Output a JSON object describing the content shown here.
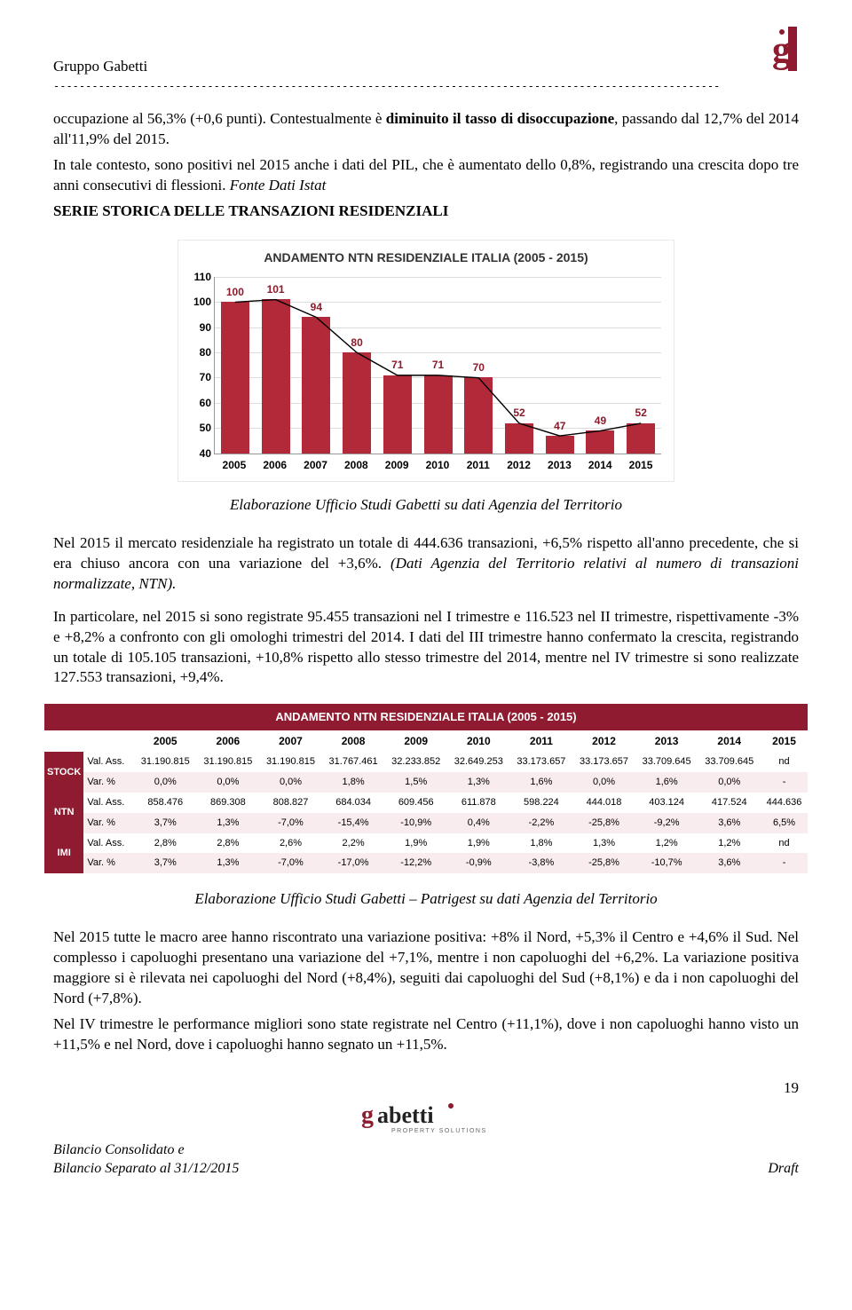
{
  "header": {
    "company": "Gruppo Gabetti",
    "page_number": "19",
    "bilancio_l1": "Bilancio Consolidato e",
    "bilancio_l2": "Bilancio Separato al 31/12/2015",
    "draft": "Draft"
  },
  "logo": {
    "g_color": "#8e1b2f",
    "side_color": "#8e1b2f",
    "footer_text": "gabetti",
    "footer_sub": "PROPERTY SOLUTIONS"
  },
  "text": {
    "p1a": "occupazione al 56,3% (+0,6 punti). Contestualmente è ",
    "p1b_bold": "diminuito il tasso di disoccupazione",
    "p1c": ", passando dal 12,7% del 2014 all'11,9% del 2015.",
    "p2": "In tale contesto, sono positivi nel 2015 anche i dati del PIL, che è aumentato dello 0,8%, registrando una crescita dopo tre anni consecutivi di flessioni. ",
    "p2_italic": "Fonte Dati Istat",
    "heading": "SERIE STORICA DELLE TRANSAZIONI RESIDENZIALI",
    "caption1": "Elaborazione Ufficio Studi Gabetti su dati Agenzia del Territorio",
    "p3": "Nel 2015 il mercato residenziale ha registrato un totale di 444.636 transazioni, +6,5% rispetto all'anno precedente, che si era chiuso ancora con una variazione del +3,6%. ",
    "p3_italic": "(Dati Agenzia del Territorio relativi al numero di transazioni normalizzate, NTN).",
    "p4": "In particolare, nel 2015 si sono registrate 95.455 transazioni nel I trimestre e 116.523 nel II trimestre, rispettivamente -3% e +8,2% a confronto con gli omologhi trimestri del 2014. I dati del III trimestre hanno confermato la crescita, registrando un totale di 105.105 transazioni, +10,8% rispetto allo stesso trimestre del 2014, mentre nel IV trimestre si sono realizzate 127.553 transazioni, +9,4%.",
    "caption2": "Elaborazione Ufficio Studi Gabetti – Patrigest su dati Agenzia del Territorio",
    "p5": "Nel 2015 tutte le macro aree hanno riscontrato una variazione positiva: +8% il Nord, +5,3% il Centro e +4,6% il Sud. Nel complesso i capoluoghi presentano una variazione del +7,1%, mentre i non capoluoghi del +6,2%. La variazione positiva maggiore si è rilevata nei capoluoghi del Nord (+8,4%), seguiti dai capoluoghi del Sud (+8,1%) e da i non capoluoghi del Nord (+7,8%).",
    "p6": "Nel IV trimestre le performance migliori sono state registrate nel Centro (+11,1%), dove i non capoluoghi hanno visto un +11,5% e nel Nord, dove i capoluoghi hanno segnato un +11,5%."
  },
  "chart": {
    "title": "ANDAMENTO NTN RESIDENZIALE ITALIA (2005 - 2015)",
    "ymin": 40,
    "ymax": 110,
    "ystep": 10,
    "bar_color": "#b22a3a",
    "value_color": "#8b1a2b",
    "trend_color": "#000000",
    "background": "#ffffff",
    "categories": [
      "2005",
      "2006",
      "2007",
      "2008",
      "2009",
      "2010",
      "2011",
      "2012",
      "2013",
      "2014",
      "2015"
    ],
    "values": [
      100,
      101,
      94,
      80,
      71,
      71,
      70,
      52,
      47,
      49,
      52
    ]
  },
  "table": {
    "title": "ANDAMENTO NTN RESIDENZIALE ITALIA (2005 - 2015)",
    "header_bg": "#8e1b2f",
    "alt_bg": "#f8ecee",
    "years": [
      "2005",
      "2006",
      "2007",
      "2008",
      "2009",
      "2010",
      "2011",
      "2012",
      "2013",
      "2014",
      "2015"
    ],
    "rows": [
      {
        "group": "STOCK",
        "label": "Val. Ass.",
        "alt": false,
        "cells": [
          "31.190.815",
          "31.190.815",
          "31.190.815",
          "31.767.461",
          "32.233.852",
          "32.649.253",
          "33.173.657",
          "33.173.657",
          "33.709.645",
          "33.709.645",
          "nd"
        ]
      },
      {
        "group": "",
        "label": "Var. %",
        "alt": true,
        "cells": [
          "0,0%",
          "0,0%",
          "0,0%",
          "1,8%",
          "1,5%",
          "1,3%",
          "1,6%",
          "0,0%",
          "1,6%",
          "0,0%",
          "-"
        ]
      },
      {
        "group": "NTN",
        "label": "Val. Ass.",
        "alt": false,
        "cells": [
          "858.476",
          "869.308",
          "808.827",
          "684.034",
          "609.456",
          "611.878",
          "598.224",
          "444.018",
          "403.124",
          "417.524",
          "444.636"
        ]
      },
      {
        "group": "",
        "label": "Var. %",
        "alt": true,
        "cells": [
          "3,7%",
          "1,3%",
          "-7,0%",
          "-15,4%",
          "-10,9%",
          "0,4%",
          "-2,2%",
          "-25,8%",
          "-9,2%",
          "3,6%",
          "6,5%"
        ]
      },
      {
        "group": "IMI",
        "label": "Val. Ass.",
        "alt": false,
        "cells": [
          "2,8%",
          "2,8%",
          "2,6%",
          "2,2%",
          "1,9%",
          "1,9%",
          "1,8%",
          "1,3%",
          "1,2%",
          "1,2%",
          "nd"
        ]
      },
      {
        "group": "",
        "label": "Var. %",
        "alt": true,
        "cells": [
          "3,7%",
          "1,3%",
          "-7,0%",
          "-17,0%",
          "-12,2%",
          "-0,9%",
          "-3,8%",
          "-25,8%",
          "-10,7%",
          "3,6%",
          "-"
        ]
      }
    ]
  }
}
